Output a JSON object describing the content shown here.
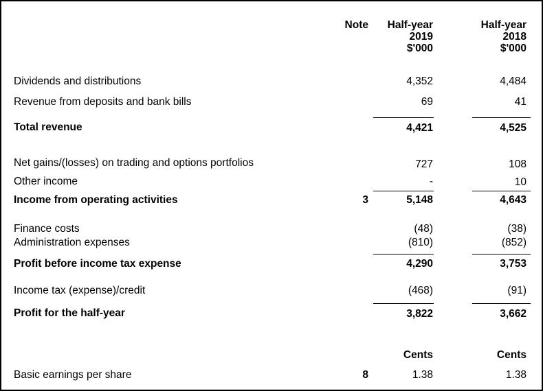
{
  "header": {
    "note": "Note",
    "col1": [
      "Half-year",
      "2019",
      "$'000"
    ],
    "col2": [
      "Half-year",
      "2018",
      "$'000"
    ]
  },
  "rows": [
    {
      "label": "Dividends and distributions",
      "note": "",
      "v2019": "4,352",
      "v2018": "4,484"
    },
    {
      "label": "Revenue from deposits and bank bills",
      "note": "",
      "v2019": "69",
      "v2018": "41"
    },
    {
      "label": "Total revenue",
      "note": "",
      "v2019": "4,421",
      "v2018": "4,525"
    },
    {
      "label": "Net gains/(losses) on trading and options portfolios",
      "note": "",
      "v2019": "727",
      "v2018": "108"
    },
    {
      "label": "Other income",
      "note": "",
      "v2019": "-",
      "v2018": "10"
    },
    {
      "label": "Income from operating activities",
      "note": "3",
      "v2019": "5,148",
      "v2018": "4,643"
    },
    {
      "label": "Finance costs",
      "note": "",
      "v2019": "(48)",
      "v2018": "(38)"
    },
    {
      "label": "Administration expenses",
      "note": "",
      "v2019": "(810)",
      "v2018": "(852)"
    },
    {
      "label": "Profit before income tax expense",
      "note": "",
      "v2019": "4,290",
      "v2018": "3,753"
    },
    {
      "label": "Income tax (expense)/credit",
      "note": "",
      "v2019": "(468)",
      "v2018": "(91)"
    },
    {
      "label": "Profit for the half-year",
      "note": "",
      "v2019": "3,822",
      "v2018": "3,662"
    }
  ],
  "eps": {
    "units_2019": "Cents",
    "units_2018": "Cents",
    "label": "Basic earnings per share",
    "note": "8",
    "v2019": "1.38",
    "v2018": "1.38"
  }
}
